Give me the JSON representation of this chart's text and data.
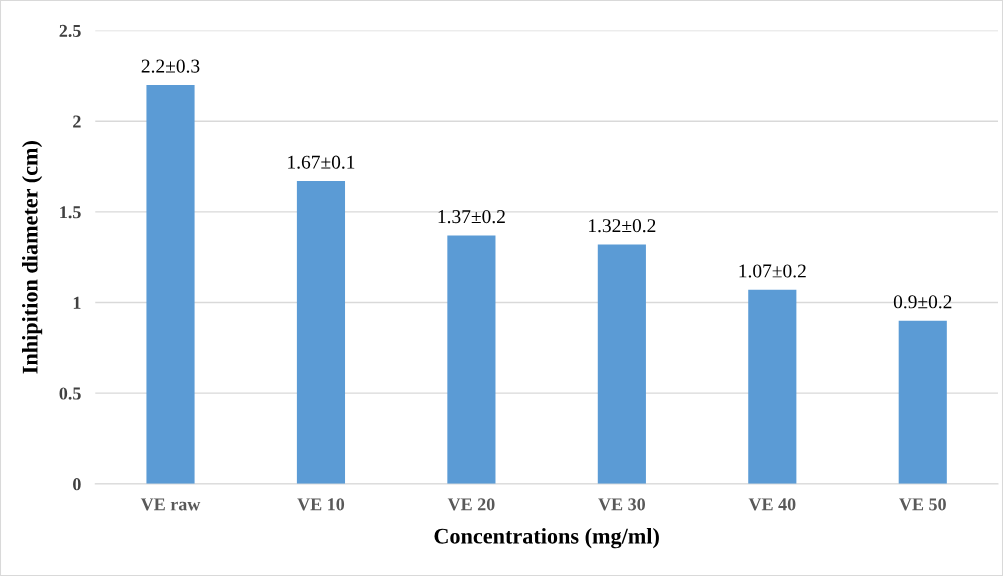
{
  "chart_data": {
    "type": "bar",
    "xlabel": "Concentrations (mg/ml)",
    "ylabel": "Inhipition diameter (cm)",
    "categories": [
      "VE raw",
      "VE 10",
      "VE 20",
      "VE 30",
      "VE 40",
      "VE 50"
    ],
    "values": [
      2.2,
      1.67,
      1.37,
      1.32,
      1.07,
      0.9
    ],
    "value_labels": [
      "2.2±0.3",
      "1.67±0.1",
      "1.37±0.2",
      "1.32±0.2",
      "1.07±0.2",
      "0.9±0.2"
    ],
    "color": "#5b9bd5",
    "ylim": [
      0,
      2.5
    ],
    "yticks": [
      0,
      0.5,
      1,
      1.5,
      2,
      2.5
    ],
    "grid": "y",
    "legend": false
  }
}
